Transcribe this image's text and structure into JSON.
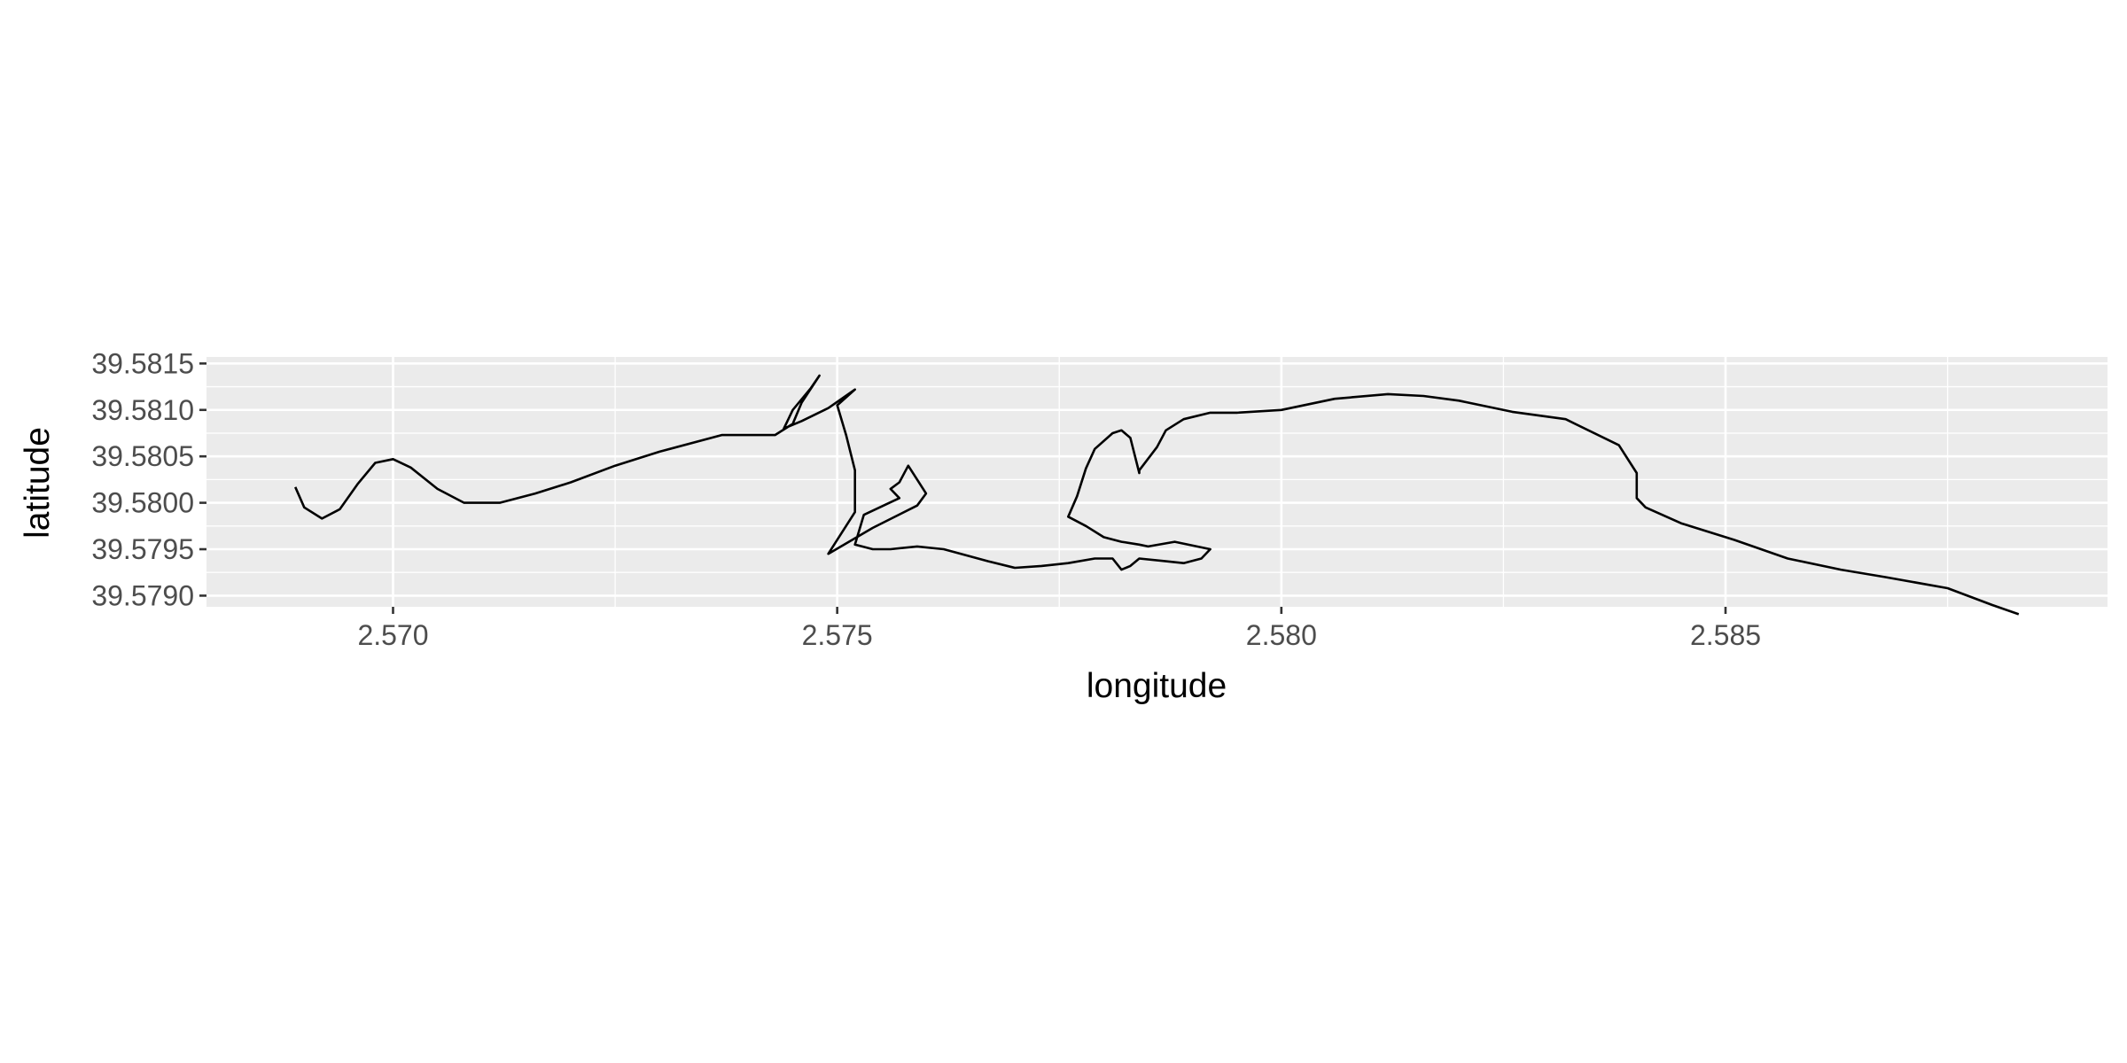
{
  "chart_data": {
    "type": "line",
    "xlabel": "longitude",
    "ylabel": "latitude",
    "xlim": [
      2.5679,
      2.5893
    ],
    "ylim": [
      39.57888,
      39.58157
    ],
    "x_ticks": [
      {
        "value": 2.57,
        "label": "2.570"
      },
      {
        "value": 2.575,
        "label": "2.575"
      },
      {
        "value": 2.58,
        "label": "2.580"
      },
      {
        "value": 2.585,
        "label": "2.585"
      }
    ],
    "y_ticks": [
      {
        "value": 39.579,
        "label": "39.5790"
      },
      {
        "value": 39.5795,
        "label": "39.5795"
      },
      {
        "value": 39.58,
        "label": "39.5800"
      },
      {
        "value": 39.5805,
        "label": "39.5805"
      },
      {
        "value": 39.581,
        "label": "39.5810"
      },
      {
        "value": 39.5815,
        "label": "39.5815"
      }
    ],
    "grid": true,
    "series": [
      {
        "x": [
          2.5689,
          2.569,
          2.5692,
          2.5694,
          2.5696,
          2.5698,
          2.57,
          2.5702,
          2.5705,
          2.5708,
          2.5712,
          2.5716,
          2.572,
          2.5725,
          2.573,
          2.5737,
          2.5743,
          2.5745,
          2.5746,
          2.5748,
          2.5747,
          2.5745,
          2.5744,
          2.5746,
          2.5749,
          2.5752,
          2.575,
          2.5751,
          2.5752,
          2.5752,
          2.5749,
          2.5754,
          2.5759,
          2.576,
          2.5759,
          2.5758,
          2.5757,
          2.5756,
          2.5757,
          2.5753,
          2.5752,
          2.5754,
          2.5756,
          2.5759,
          2.5762,
          2.5767,
          2.577,
          2.5773,
          2.5776,
          2.5779,
          2.5781,
          2.5782,
          2.5783,
          2.5784,
          2.5787,
          2.5789,
          2.5791,
          2.5792,
          2.5788,
          2.5785,
          2.5784,
          2.5782,
          2.578,
          2.5778,
          2.5776,
          2.5777,
          2.5778,
          2.5779,
          2.5781,
          2.5782,
          2.5783,
          2.5784,
          2.5784,
          2.5786,
          2.5787,
          2.5789,
          2.5792,
          2.5795,
          2.58,
          2.5806,
          2.5812,
          2.5816,
          2.582,
          2.5826,
          2.5832,
          2.5838,
          2.584,
          2.584,
          2.5841,
          2.5845,
          2.5851,
          2.5857,
          2.5863,
          2.5868,
          2.5875,
          2.588,
          2.5883
        ],
        "y": [
          39.58017,
          39.57995,
          39.57983,
          39.57993,
          39.5802,
          39.58043,
          39.58047,
          39.58038,
          39.58015,
          39.58,
          39.58,
          39.5801,
          39.58022,
          39.5804,
          39.58055,
          39.58073,
          39.58073,
          39.58085,
          39.58108,
          39.58137,
          39.58123,
          39.581,
          39.5808,
          39.58088,
          39.58102,
          39.58122,
          39.58105,
          39.58073,
          39.58035,
          39.5799,
          39.57945,
          39.57973,
          39.57997,
          39.5801,
          39.58025,
          39.5804,
          39.58022,
          39.58015,
          39.58005,
          39.57987,
          39.57955,
          39.5795,
          39.5795,
          39.57953,
          39.5795,
          39.57937,
          39.5793,
          39.57932,
          39.57935,
          39.5794,
          39.5794,
          39.57928,
          39.57932,
          39.5794,
          39.57937,
          39.57935,
          39.5794,
          39.5795,
          39.57958,
          39.57953,
          39.57955,
          39.57958,
          39.57963,
          39.57975,
          39.57985,
          39.58007,
          39.58037,
          39.58058,
          39.58075,
          39.58078,
          39.5807,
          39.58032,
          39.58035,
          39.5806,
          39.58078,
          39.5809,
          39.58097,
          39.58097,
          39.581,
          39.58112,
          39.58117,
          39.58115,
          39.5811,
          39.58098,
          39.5809,
          39.58062,
          39.58032,
          39.58005,
          39.57995,
          39.57978,
          39.5796,
          39.5794,
          39.57928,
          39.5792,
          39.57908,
          39.5789,
          39.5788
        ]
      }
    ]
  }
}
